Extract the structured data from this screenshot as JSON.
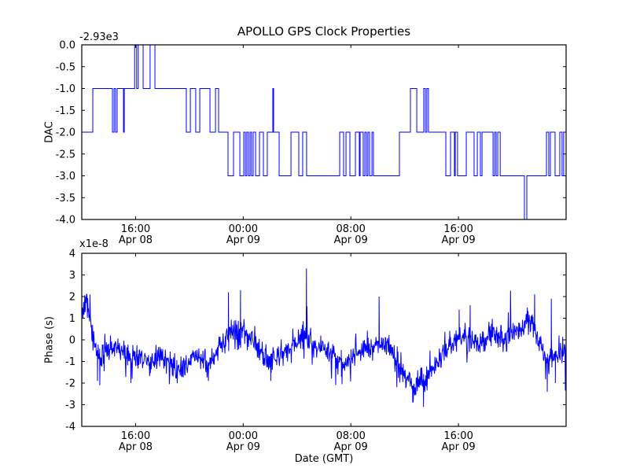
{
  "figure": {
    "title": "APOLLO GPS Clock Properties",
    "background_color": "#ffffff",
    "axis_color": "#000000",
    "line_color": "#0000ff"
  },
  "chart_data": [
    {
      "type": "line",
      "subplot": "top",
      "title": "APOLLO GPS Clock Properties",
      "ylabel": "DAC",
      "y_offset_label": "-2.93e3",
      "ylim": [
        -4.0,
        0.0
      ],
      "ytick_labels": [
        "0.0",
        "-0.5",
        "-1.0",
        "-1.5",
        "-2.0",
        "-2.5",
        "-3.0",
        "-3.5",
        "-4.0"
      ],
      "ytick_values": [
        0.0,
        -0.5,
        -1.0,
        -1.5,
        -2.0,
        -2.5,
        -3.0,
        -3.5,
        -4.0
      ],
      "x_hours_range": [
        0,
        36
      ],
      "xticks": [
        {
          "hour": 4,
          "time": "16:00",
          "date": "Apr 08"
        },
        {
          "hour": 12,
          "time": "00:00",
          "date": "Apr 09"
        },
        {
          "hour": 20,
          "time": "08:00",
          "date": "Apr 09"
        },
        {
          "hour": 28,
          "time": "16:00",
          "date": "Apr 09"
        }
      ],
      "line_color": "#0000ff",
      "grid": false,
      "legend": "none",
      "steps_note": "pairs of [hour_from_plot_start, DAC value in offset units]; value holds until next entry; true DAC = -2930 + value",
      "steps": [
        [
          0,
          -2
        ],
        [
          0.82,
          -1
        ],
        [
          2.28,
          -2
        ],
        [
          2.4,
          -1
        ],
        [
          2.51,
          -2
        ],
        [
          2.63,
          -1
        ],
        [
          3.1,
          -2
        ],
        [
          3.16,
          -1
        ],
        [
          3.93,
          0
        ],
        [
          4.08,
          -1
        ],
        [
          4.2,
          0
        ],
        [
          4.56,
          -1
        ],
        [
          5.08,
          0
        ],
        [
          5.44,
          -1
        ],
        [
          7.77,
          -2
        ],
        [
          8.07,
          -1
        ],
        [
          8.47,
          -2
        ],
        [
          8.77,
          -1
        ],
        [
          9.53,
          -2
        ],
        [
          9.94,
          -1
        ],
        [
          10.17,
          -2
        ],
        [
          10.87,
          -3
        ],
        [
          11.28,
          -2
        ],
        [
          11.75,
          -3
        ],
        [
          12.04,
          -2
        ],
        [
          12.16,
          -3
        ],
        [
          12.27,
          -2
        ],
        [
          12.39,
          -3
        ],
        [
          12.51,
          -2
        ],
        [
          12.62,
          -3
        ],
        [
          12.74,
          -2
        ],
        [
          12.92,
          -3
        ],
        [
          13.21,
          -2
        ],
        [
          13.5,
          -3
        ],
        [
          13.79,
          -2
        ],
        [
          14.2,
          -1
        ],
        [
          14.26,
          -2
        ],
        [
          14.67,
          -3
        ],
        [
          15.55,
          -2
        ],
        [
          16.13,
          -3
        ],
        [
          16.42,
          -2
        ],
        [
          16.71,
          -3
        ],
        [
          19.17,
          -2
        ],
        [
          19.46,
          -3
        ],
        [
          19.64,
          -2
        ],
        [
          19.93,
          -3
        ],
        [
          20.34,
          -2
        ],
        [
          20.63,
          -3
        ],
        [
          20.69,
          -2
        ],
        [
          20.92,
          -3
        ],
        [
          21.04,
          -2
        ],
        [
          21.16,
          -3
        ],
        [
          21.27,
          -2
        ],
        [
          21.39,
          -3
        ],
        [
          21.57,
          -2
        ],
        [
          21.68,
          -3
        ],
        [
          23.61,
          -2
        ],
        [
          24.43,
          -1
        ],
        [
          24.9,
          -2
        ],
        [
          25.42,
          -1
        ],
        [
          25.54,
          -2
        ],
        [
          25.65,
          -1
        ],
        [
          25.77,
          -2
        ],
        [
          27.06,
          -3
        ],
        [
          27.41,
          -2
        ],
        [
          27.7,
          -3
        ],
        [
          27.76,
          -2
        ],
        [
          27.93,
          -3
        ],
        [
          28.58,
          -2
        ],
        [
          29.16,
          -3
        ],
        [
          29.4,
          -2
        ],
        [
          29.63,
          -3
        ],
        [
          29.75,
          -2
        ],
        [
          30.57,
          -3
        ],
        [
          30.69,
          -2
        ],
        [
          30.8,
          -3
        ],
        [
          30.92,
          -2
        ],
        [
          31.1,
          -3
        ],
        [
          32.9,
          -4
        ],
        [
          33.08,
          -3
        ],
        [
          34.54,
          -2
        ],
        [
          34.71,
          -3
        ],
        [
          34.83,
          -2
        ],
        [
          35.18,
          -3
        ],
        [
          35.53,
          -2
        ],
        [
          35.7,
          -3
        ],
        [
          35.82,
          -2
        ]
      ]
    },
    {
      "type": "line",
      "subplot": "bottom",
      "ylabel": "Phase (s)",
      "y_offset_label": "x1e-8",
      "xlabel": "Date (GMT)",
      "ylim": [
        -4,
        4
      ],
      "ytick_labels": [
        "4",
        "3",
        "2",
        "1",
        "0",
        "-1",
        "-2",
        "-3",
        "-4"
      ],
      "ytick_values": [
        4,
        3,
        2,
        1,
        0,
        -1,
        -2,
        -3,
        -4
      ],
      "x_hours_range": [
        0,
        36
      ],
      "xticks": [
        {
          "hour": 4,
          "time": "16:00",
          "date": "Apr 08"
        },
        {
          "hour": 12,
          "time": "00:00",
          "date": "Apr 09"
        },
        {
          "hour": 20,
          "time": "08:00",
          "date": "Apr 09"
        },
        {
          "hour": 28,
          "time": "16:00",
          "date": "Apr 09"
        }
      ],
      "line_color": "#0000ff",
      "grid": false,
      "legend": "none",
      "trend_note": "mean path of noisy phase signal, [hour, value in 1e-8 s]",
      "trend": [
        [
          0,
          1.2
        ],
        [
          0.3,
          1.7
        ],
        [
          0.6,
          1.1
        ],
        [
          1.0,
          -0.2
        ],
        [
          1.4,
          -0.9
        ],
        [
          1.8,
          -0.5
        ],
        [
          2.4,
          -0.2
        ],
        [
          3.0,
          -0.5
        ],
        [
          3.6,
          -0.9
        ],
        [
          4.2,
          -0.7
        ],
        [
          5.0,
          -1.2
        ],
        [
          5.8,
          -0.7
        ],
        [
          6.6,
          -1.1
        ],
        [
          7.4,
          -1.5
        ],
        [
          8.2,
          -0.8
        ],
        [
          9.0,
          -1.0
        ],
        [
          9.6,
          -1.1
        ],
        [
          10.2,
          -0.3
        ],
        [
          10.8,
          0.2
        ],
        [
          11.4,
          0.4
        ],
        [
          12.0,
          0.3
        ],
        [
          12.6,
          0.2
        ],
        [
          13.2,
          -0.3
        ],
        [
          14.0,
          -1.0
        ],
        [
          14.6,
          -0.7
        ],
        [
          15.4,
          -0.5
        ],
        [
          16.2,
          0.0
        ],
        [
          16.8,
          0.1
        ],
        [
          17.4,
          -0.2
        ],
        [
          18.2,
          -0.5
        ],
        [
          19.0,
          -0.9
        ],
        [
          19.6,
          -1.1
        ],
        [
          20.2,
          -0.7
        ],
        [
          21.0,
          -0.4
        ],
        [
          21.8,
          -0.2
        ],
        [
          22.4,
          -0.1
        ],
        [
          23.0,
          -0.4
        ],
        [
          23.6,
          -1.0
        ],
        [
          24.2,
          -1.8
        ],
        [
          24.7,
          -2.2
        ],
        [
          25.2,
          -1.9
        ],
        [
          25.7,
          -1.7
        ],
        [
          26.2,
          -1.2
        ],
        [
          26.8,
          -0.6
        ],
        [
          27.4,
          -0.3
        ],
        [
          28.0,
          0.0
        ],
        [
          28.6,
          0.2
        ],
        [
          29.2,
          0.0
        ],
        [
          29.8,
          -0.1
        ],
        [
          30.4,
          0.3
        ],
        [
          31.0,
          0.1
        ],
        [
          31.6,
          0.2
        ],
        [
          32.2,
          0.4
        ],
        [
          32.8,
          0.6
        ],
        [
          33.4,
          0.8
        ],
        [
          34.0,
          -0.1
        ],
        [
          34.5,
          -0.9
        ],
        [
          35.0,
          -0.8
        ],
        [
          35.5,
          -0.5
        ],
        [
          36,
          -0.3
        ]
      ],
      "spikes_note": "narrow excursions, [hour, peak value in 1e-8 s]",
      "spikes": [
        [
          0.3,
          2.0
        ],
        [
          1.17,
          -1.9
        ],
        [
          1.34,
          -2.1
        ],
        [
          3.65,
          -2.0
        ],
        [
          9.41,
          -1.9
        ],
        [
          10.9,
          2.2
        ],
        [
          11.8,
          2.3
        ],
        [
          14.05,
          -1.9
        ],
        [
          16.7,
          3.3
        ],
        [
          19.3,
          -1.7
        ],
        [
          22.1,
          2.0
        ],
        [
          24.6,
          -2.9
        ],
        [
          25.4,
          -3.1
        ],
        [
          28.05,
          1.4
        ],
        [
          28.87,
          1.6
        ],
        [
          33.66,
          2.1
        ],
        [
          34.6,
          -2.4
        ],
        [
          34.9,
          1.9
        ],
        [
          35.2,
          -2.0
        ]
      ],
      "noise": {
        "sigma": 0.28,
        "tail_sigma": 0.6,
        "tail_prob": 0.08,
        "points": 1300,
        "seed": 42
      }
    }
  ]
}
